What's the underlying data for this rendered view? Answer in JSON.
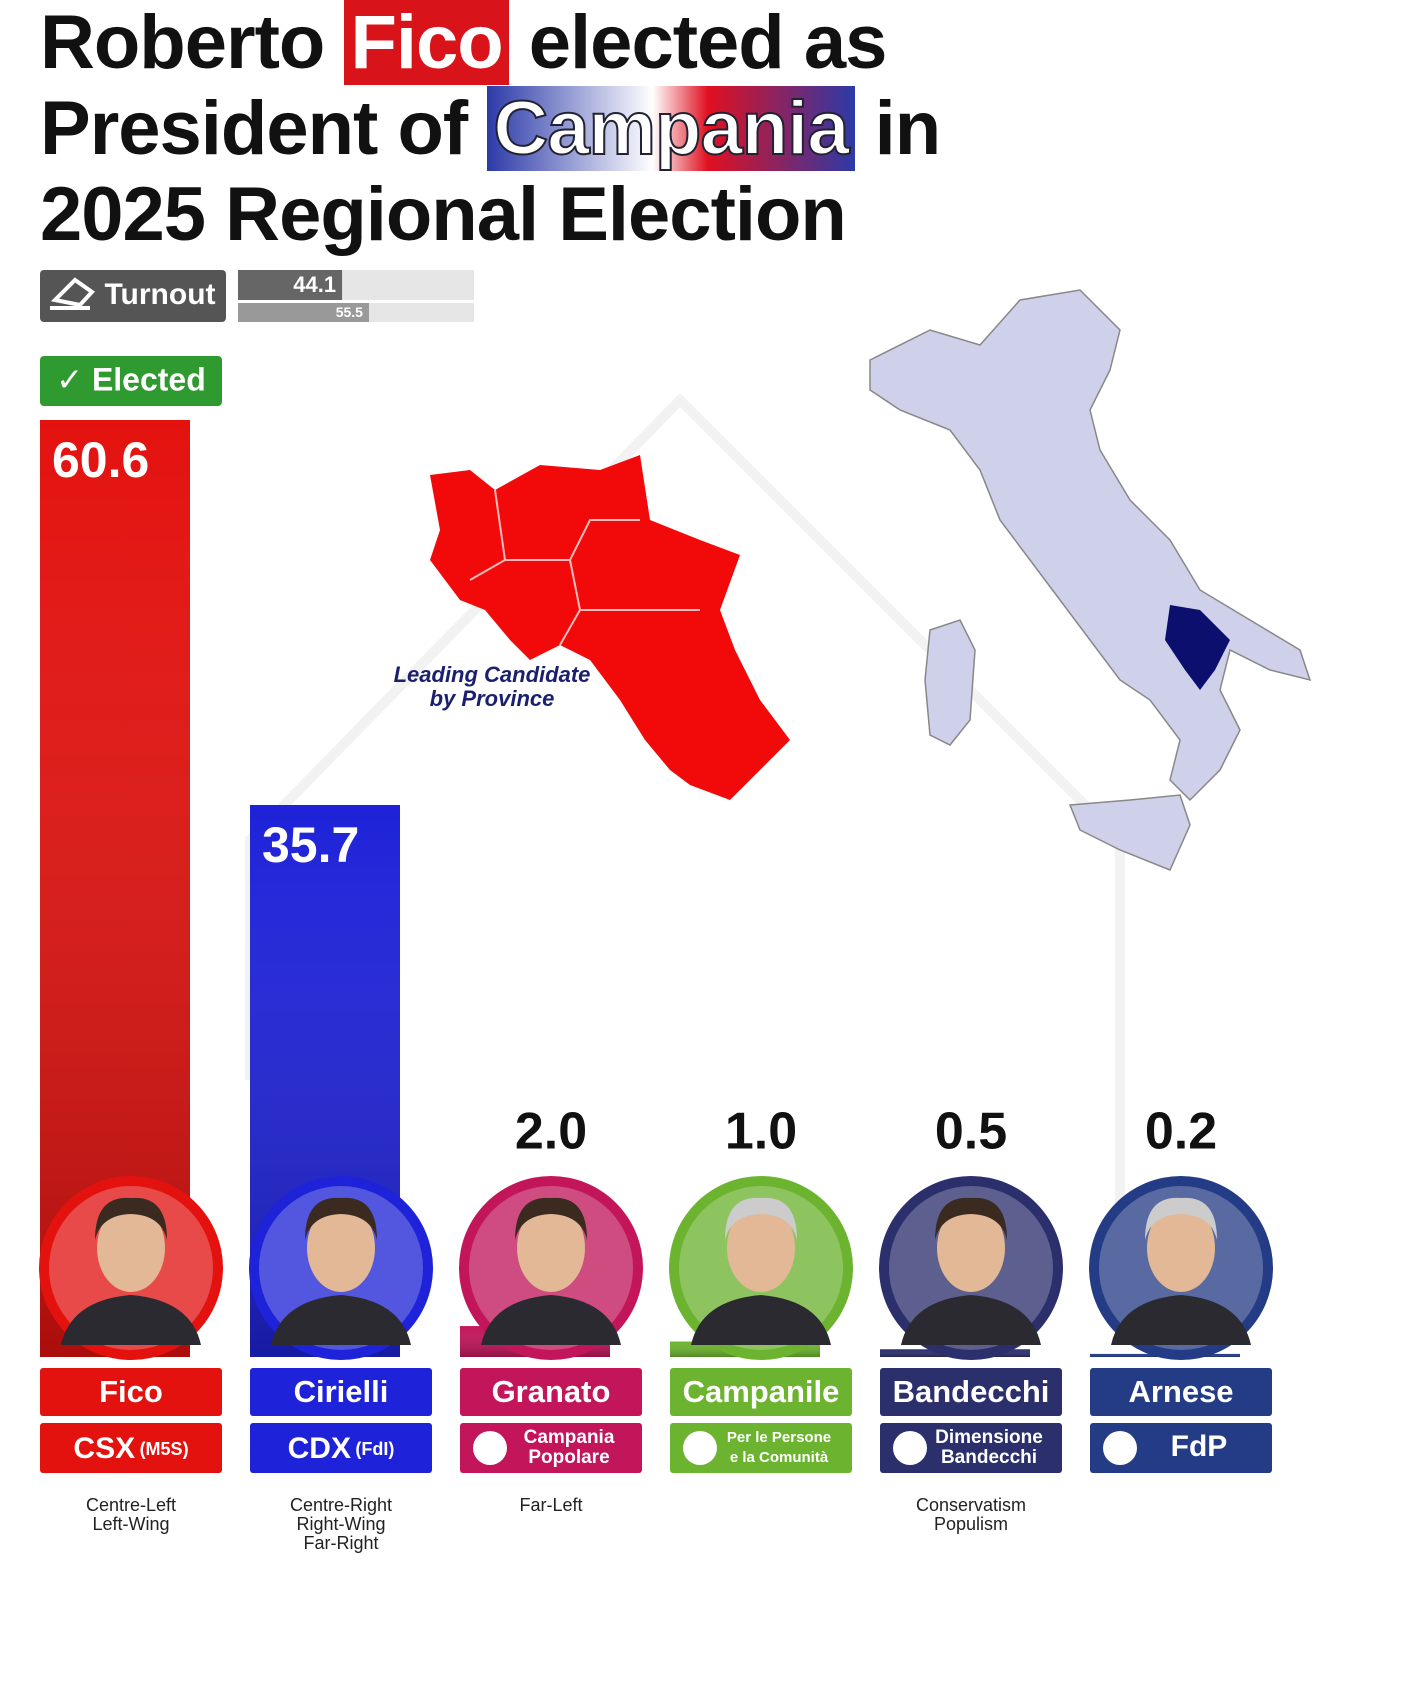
{
  "chart_data": {
    "type": "bar",
    "title": "Roberto Fico elected as President of Campania in 2025 Regional Election",
    "title_highlights": [
      "Fico",
      "Campania"
    ],
    "turnout": {
      "label": "Turnout",
      "values": [
        44.1,
        55.5
      ],
      "xlim": [
        0,
        100
      ]
    },
    "elected_label": "✓ Elected",
    "map_annotation": [
      "Leading Candidate",
      "by Province"
    ],
    "categories": [
      "Fico",
      "Cirielli",
      "Granato",
      "Campanile",
      "Bandecchi",
      "Arnese"
    ],
    "values": [
      60.6,
      35.7,
      2.0,
      1.0,
      0.5,
      0.2
    ],
    "value_labels": [
      "60.6",
      "35.7",
      "2.0",
      "1.0",
      "0.5",
      "0.2"
    ],
    "colors": [
      "#e3120f",
      "#1e22d8",
      "#c3155a",
      "#6cb42f",
      "#2b2f6c",
      "#243c86"
    ],
    "parties": [
      [
        "CSX",
        "(M5S)"
      ],
      [
        "CDX",
        "(FdI)"
      ],
      [
        "Campania",
        "Popolare"
      ],
      [
        "Per le Persone",
        "e la Comunità"
      ],
      [
        "Dimensione",
        "Bandecchi"
      ],
      [
        "FdP"
      ]
    ],
    "ideologies": [
      [
        "Centre-Left",
        "Left-Wing"
      ],
      [
        "Centre-Right",
        "Right-Wing",
        "Far-Right"
      ],
      [
        "Far-Left"
      ],
      [],
      [
        "Conservatism",
        "Populism"
      ],
      []
    ]
  }
}
